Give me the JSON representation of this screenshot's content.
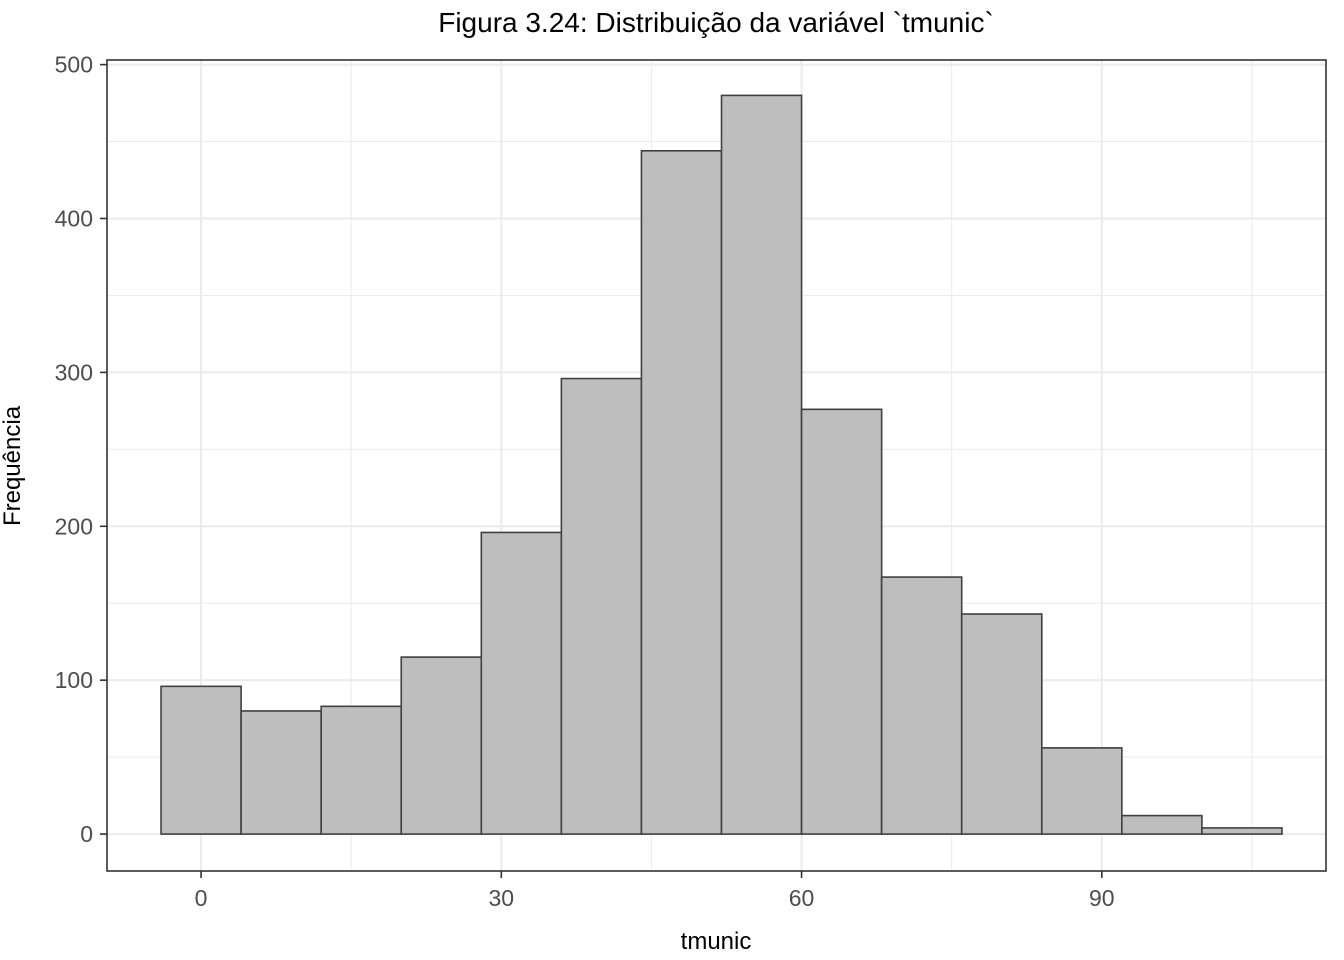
{
  "chart_data": {
    "type": "bar",
    "subtype": "histogram",
    "title": "Figura 3.24: Distribuição da variável `tmunic`",
    "xlabel": "tmunic",
    "ylabel": "Frequência",
    "xlim": [
      -9.4,
      112.4
    ],
    "ylim": [
      -24,
      503
    ],
    "x_ticks": [
      0,
      30,
      60,
      90
    ],
    "x_tick_labels": [
      "0",
      "30",
      "60",
      "90"
    ],
    "y_ticks": [
      0,
      100,
      200,
      300,
      400,
      500
    ],
    "y_tick_labels": [
      "0",
      "100",
      "200",
      "300",
      "400",
      "500"
    ],
    "bin_width": 8,
    "bins": [
      {
        "x0": -4,
        "x1": 4,
        "value": 96
      },
      {
        "x0": 4,
        "x1": 12,
        "value": 80
      },
      {
        "x0": 12,
        "x1": 20,
        "value": 83
      },
      {
        "x0": 20,
        "x1": 28,
        "value": 115
      },
      {
        "x0": 28,
        "x1": 36,
        "value": 196
      },
      {
        "x0": 36,
        "x1": 44,
        "value": 296
      },
      {
        "x0": 44,
        "x1": 52,
        "value": 444
      },
      {
        "x0": 52,
        "x1": 60,
        "value": 480
      },
      {
        "x0": 60,
        "x1": 68,
        "value": 276
      },
      {
        "x0": 68,
        "x1": 76,
        "value": 167
      },
      {
        "x0": 76,
        "x1": 84,
        "value": 143
      },
      {
        "x0": 84,
        "x1": 92,
        "value": 56
      },
      {
        "x0": 92,
        "x1": 100,
        "value": 12
      },
      {
        "x0": 100,
        "x1": 108,
        "value": 4
      }
    ],
    "bar_fill": "#bebebe",
    "bar_stroke": "#404040",
    "grid": true,
    "grid_color": "#ebebeb",
    "panel_border_color": "#333333",
    "legend": "none"
  }
}
